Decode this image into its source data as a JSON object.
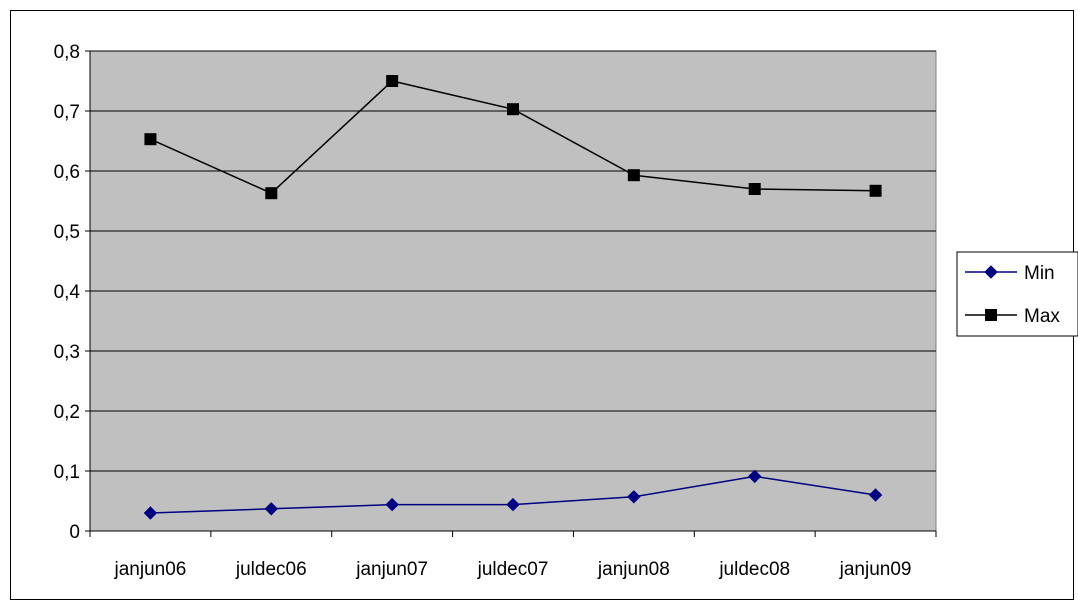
{
  "chart_data": {
    "type": "line",
    "categories": [
      "janjun06",
      "juldec06",
      "janjun07",
      "juldec07",
      "janjun08",
      "juldec08",
      "janjun09"
    ],
    "series": [
      {
        "name": "Min",
        "color": "#000080",
        "marker": "diamond",
        "values": [
          0.03,
          0.037,
          0.044,
          0.044,
          0.057,
          0.091,
          0.06
        ]
      },
      {
        "name": "Max",
        "color": "#000000",
        "marker": "square",
        "values": [
          0.653,
          0.563,
          0.75,
          0.703,
          0.593,
          0.57,
          0.567
        ]
      }
    ],
    "ylim": [
      0,
      0.8
    ],
    "yticks": [
      "0",
      "0,1",
      "0,2",
      "0,3",
      "0,4",
      "0,5",
      "0,6",
      "0,7",
      "0,8"
    ],
    "grid": true,
    "legend": "right",
    "plot_bg": "#c0c0c0",
    "title": "",
    "xlabel": "",
    "ylabel": ""
  }
}
